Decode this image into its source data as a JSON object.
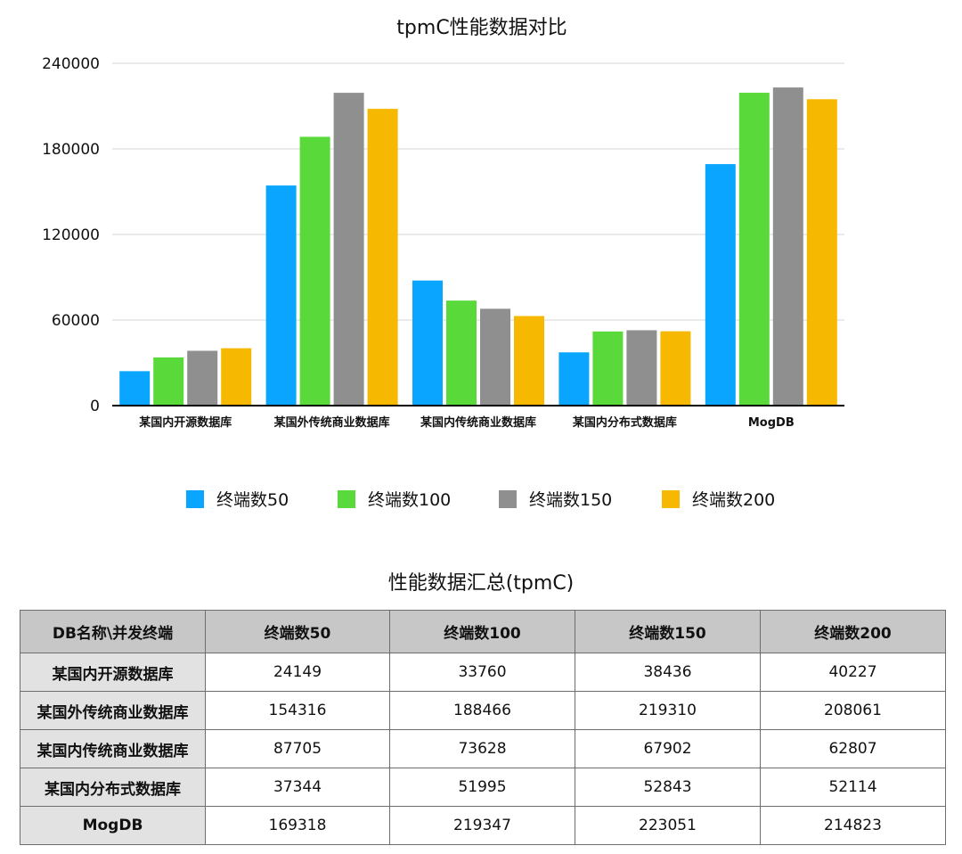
{
  "colors": {
    "series": [
      "#0aa5ff",
      "#5ad93a",
      "#8f8f8f",
      "#f6b800"
    ],
    "grid": "#d6d6d6",
    "axis": "#000000"
  },
  "chart_data": {
    "type": "bar",
    "title": "tpmC性能数据对比",
    "xlabel": "",
    "ylabel": "",
    "ylim": [
      0,
      240000
    ],
    "yticks": [
      "0",
      "60000",
      "120000",
      "180000",
      "240000"
    ],
    "grid": true,
    "legend_position": "bottom",
    "categories": [
      "某国内开源数据库",
      "某国外传统商业数据库",
      "某国内传统商业数据库",
      "某国内分布式数据库",
      "MogDB"
    ],
    "series": [
      {
        "name": "终端数50",
        "values": [
          24149,
          154316,
          87705,
          37344,
          169318
        ]
      },
      {
        "name": "终端数100",
        "values": [
          33760,
          188466,
          73628,
          51995,
          219347
        ]
      },
      {
        "name": "终端数150",
        "values": [
          38436,
          219310,
          67902,
          52843,
          223051
        ]
      },
      {
        "name": "终端数200",
        "values": [
          40227,
          208061,
          62807,
          52114,
          214823
        ]
      }
    ]
  },
  "table": {
    "title": "性能数据汇总(tpmC)",
    "headers": [
      "DB名称\\并发终端",
      "终端数50",
      "终端数100",
      "终端数150",
      "终端数200"
    ],
    "rows": [
      [
        "某国内开源数据库",
        "24149",
        "33760",
        "38436",
        "40227"
      ],
      [
        "某国外传统商业数据库",
        "154316",
        "188466",
        "219310",
        "208061"
      ],
      [
        "某国内传统商业数据库",
        "87705",
        "73628",
        "67902",
        "62807"
      ],
      [
        "某国内分布式数据库",
        "37344",
        "51995",
        "52843",
        "52114"
      ],
      [
        "MogDB",
        "169318",
        "219347",
        "223051",
        "214823"
      ]
    ]
  }
}
